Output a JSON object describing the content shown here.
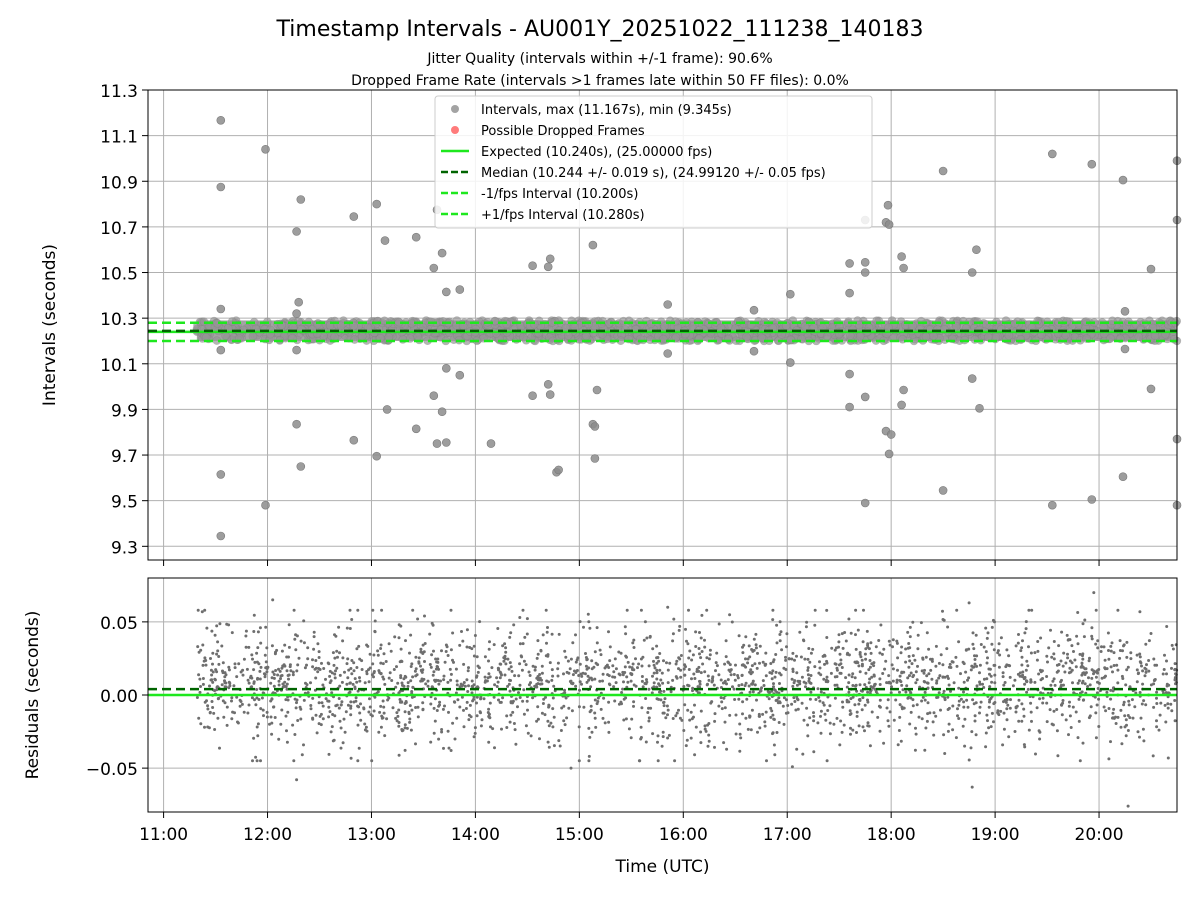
{
  "title": "Timestamp Intervals - AU001Y_20251022_111238_140183",
  "subtitle_1": "Jitter Quality (intervals within +/-1 frame): 90.6%",
  "subtitle_2": "Dropped Frame Rate (intervals >1 frames late within 50 FF files): 0.0%",
  "colors": {
    "points": "#8c8c8c",
    "dropped": "#ff5a5a",
    "expected": "#1ee81e",
    "median": "#006400",
    "fps_interval": "#1ee81e",
    "residual_points": "#6e6e6e"
  },
  "chart_data": [
    {
      "type": "scatter",
      "ylabel": "Intervals (seconds)",
      "ylim": [
        9.24,
        11.3
      ],
      "yticks": [
        "9.3",
        "9.5",
        "9.7",
        "9.9",
        "10.1",
        "10.3",
        "10.5",
        "10.7",
        "10.9",
        "11.1",
        "11.3"
      ],
      "xlim_hours": [
        10.85,
        20.75
      ],
      "grid": true,
      "legend_position": "top-center",
      "legend": [
        {
          "label": "Intervals, max (11.167s), min (9.345s)",
          "kind": "marker",
          "color": "#8c8c8c"
        },
        {
          "label": "Possible Dropped Frames",
          "kind": "marker",
          "color": "#ff5a5a"
        },
        {
          "label": "Expected (10.240s), (25.00000 fps)",
          "kind": "solid",
          "color": "#1ee81e"
        },
        {
          "label": "Median (10.244 +/- 0.019 s), (24.99120 +/- 0.05 fps)",
          "kind": "dashed",
          "color": "#006400"
        },
        {
          "label": "-1/fps Interval (10.200s)",
          "kind": "dashed",
          "color": "#1ee81e"
        },
        {
          "label": "+1/fps Interval (10.280s)",
          "kind": "dashed",
          "color": "#1ee81e"
        }
      ],
      "reference_lines": {
        "expected": 10.24,
        "median": 10.244,
        "minus_interval": 10.2,
        "plus_interval": 10.28
      },
      "series": [
        {
          "name": "Intervals, max (11.167s), min (9.345s)",
          "time_range_hours": [
            11.32,
            20.75
          ],
          "dense_band": [
            10.2,
            10.29
          ],
          "outliers": [
            [
              11.55,
              11.167
            ],
            [
              11.55,
              10.875
            ],
            [
              11.55,
              10.34
            ],
            [
              11.55,
              10.16
            ],
            [
              11.55,
              9.615
            ],
            [
              11.55,
              9.345
            ],
            [
              11.98,
              11.04
            ],
            [
              11.98,
              9.48
            ],
            [
              12.28,
              10.68
            ],
            [
              12.3,
              10.37
            ],
            [
              12.28,
              10.32
            ],
            [
              12.28,
              10.16
            ],
            [
              12.28,
              9.835
            ],
            [
              12.32,
              10.82
            ],
            [
              12.32,
              9.65
            ],
            [
              12.83,
              10.745
            ],
            [
              12.83,
              9.765
            ],
            [
              13.05,
              10.8
            ],
            [
              13.05,
              9.695
            ],
            [
              13.13,
              10.64
            ],
            [
              13.15,
              9.9
            ],
            [
              13.43,
              10.655
            ],
            [
              13.43,
              9.815
            ],
            [
              13.6,
              10.52
            ],
            [
              13.6,
              9.96
            ],
            [
              13.63,
              10.775
            ],
            [
              13.63,
              9.75
            ],
            [
              13.68,
              10.585
            ],
            [
              13.68,
              9.89
            ],
            [
              13.72,
              10.415
            ],
            [
              13.72,
              10.08
            ],
            [
              13.72,
              9.755
            ],
            [
              13.85,
              10.425
            ],
            [
              13.85,
              10.05
            ],
            [
              14.15,
              9.75
            ],
            [
              14.55,
              10.53
            ],
            [
              14.55,
              9.96
            ],
            [
              14.7,
              10.525
            ],
            [
              14.7,
              10.01
            ],
            [
              14.72,
              10.56
            ],
            [
              14.72,
              9.965
            ],
            [
              14.78,
              9.625
            ],
            [
              14.8,
              9.635
            ],
            [
              15.13,
              10.62
            ],
            [
              15.13,
              9.835
            ],
            [
              15.15,
              9.825
            ],
            [
              15.15,
              9.685
            ],
            [
              15.17,
              9.985
            ],
            [
              15.85,
              10.36
            ],
            [
              15.85,
              10.145
            ],
            [
              16.68,
              10.335
            ],
            [
              16.68,
              10.155
            ],
            [
              17.03,
              10.405
            ],
            [
              17.03,
              10.105
            ],
            [
              17.6,
              10.54
            ],
            [
              17.6,
              10.41
            ],
            [
              17.6,
              10.055
            ],
            [
              17.6,
              9.91
            ],
            [
              17.75,
              10.73
            ],
            [
              17.75,
              10.545
            ],
            [
              17.75,
              10.5
            ],
            [
              17.75,
              9.955
            ],
            [
              17.75,
              9.49
            ],
            [
              17.95,
              10.72
            ],
            [
              17.95,
              9.805
            ],
            [
              17.97,
              10.795
            ],
            [
              17.98,
              10.71
            ],
            [
              17.98,
              9.705
            ],
            [
              18.0,
              9.79
            ],
            [
              18.1,
              10.57
            ],
            [
              18.12,
              10.52
            ],
            [
              18.12,
              9.985
            ],
            [
              18.1,
              9.92
            ],
            [
              18.5,
              10.945
            ],
            [
              18.5,
              9.545
            ],
            [
              18.78,
              10.5
            ],
            [
              18.82,
              10.6
            ],
            [
              18.78,
              10.035
            ],
            [
              18.85,
              9.905
            ],
            [
              19.55,
              11.02
            ],
            [
              19.55,
              9.48
            ],
            [
              19.93,
              10.975
            ],
            [
              19.93,
              9.505
            ],
            [
              20.23,
              10.905
            ],
            [
              20.25,
              10.33
            ],
            [
              20.25,
              10.165
            ],
            [
              20.23,
              9.605
            ],
            [
              20.5,
              10.515
            ],
            [
              20.5,
              9.99
            ],
            [
              20.75,
              10.99
            ],
            [
              20.75,
              10.73
            ],
            [
              20.75,
              9.77
            ],
            [
              20.75,
              9.48
            ]
          ]
        }
      ]
    },
    {
      "type": "scatter",
      "xlabel": "Time (UTC)",
      "ylabel": "Residuals (seconds)",
      "ylim": [
        -0.08,
        0.08
      ],
      "yticks": [
        "−0.05",
        "0.00",
        "0.05"
      ],
      "xticks": [
        "11:00",
        "12:00",
        "13:00",
        "14:00",
        "15:00",
        "16:00",
        "17:00",
        "18:00",
        "19:00",
        "20:00"
      ],
      "xtick_hours": [
        11,
        12,
        13,
        14,
        15,
        16,
        17,
        18,
        19,
        20
      ],
      "xlim_hours": [
        10.85,
        20.75
      ],
      "grid": true,
      "reference_lines": {
        "expected": 0.0,
        "median": 0.004
      },
      "series": [
        {
          "name": "",
          "time_range_hours": [
            11.32,
            20.75
          ],
          "typical_range": [
            -0.04,
            0.06
          ],
          "extremes": [
            [
              12.28,
              -0.058
            ],
            [
              17.05,
              -0.049
            ],
            [
              14.92,
              -0.05
            ],
            [
              18.78,
              -0.063
            ],
            [
              20.28,
              -0.076
            ],
            [
              19.95,
              0.07
            ],
            [
              12.05,
              0.065
            ],
            [
              18.75,
              0.063
            ],
            [
              15.85,
              0.06
            ]
          ]
        }
      ]
    }
  ]
}
